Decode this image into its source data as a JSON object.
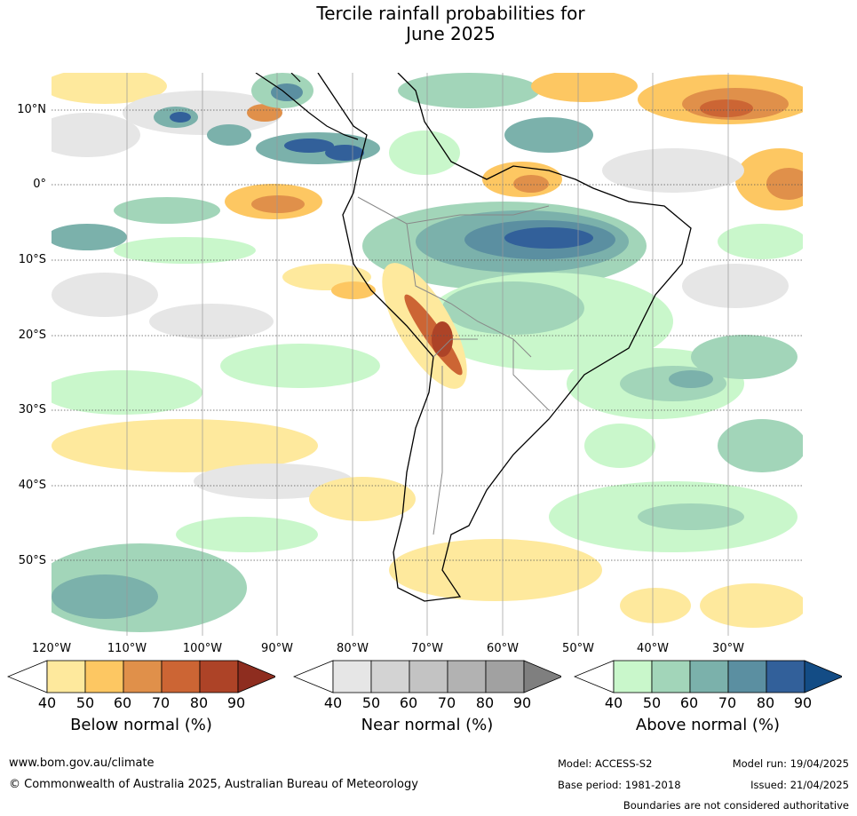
{
  "title": {
    "line1": "Tercile rainfall probabilities for",
    "line2": "June 2025"
  },
  "map": {
    "lat_labels": [
      "10°N",
      "0°",
      "10°S",
      "20°S",
      "30°S",
      "40°S",
      "50°S"
    ],
    "lon_labels": [
      "120°W",
      "110°W",
      "100°W",
      "90°W",
      "80°W",
      "70°W",
      "60°W",
      "50°W",
      "40°W",
      "30°W"
    ]
  },
  "colorbars": {
    "below": {
      "label": "Below normal (%)",
      "ticks": [
        "40",
        "50",
        "60",
        "70",
        "80",
        "90"
      ],
      "colors": [
        "#ffffff",
        "#fee99d",
        "#fdc762",
        "#e0904a",
        "#cc6534",
        "#ad4327",
        "#8e2d1f"
      ]
    },
    "near": {
      "label": "Near normal (%)",
      "ticks": [
        "40",
        "50",
        "60",
        "70",
        "80",
        "90"
      ],
      "colors": [
        "#ffffff",
        "#e6e6e6",
        "#d3d3d3",
        "#c3c3c3",
        "#b2b2b2",
        "#a1a1a1",
        "#7f7f7f"
      ]
    },
    "above": {
      "label": "Above normal (%)",
      "ticks": [
        "40",
        "50",
        "60",
        "70",
        "80",
        "90"
      ],
      "colors": [
        "#ffffff",
        "#c9f7cb",
        "#a2d5b9",
        "#7bb1ab",
        "#5b8fa1",
        "#32609a",
        "#134c85"
      ]
    }
  },
  "footer": {
    "url": "www.bom.gov.au/climate",
    "copyright": "© Commonwealth of Australia 2025, Australian Bureau of Meteorology",
    "model": "Model: ACCESS-S2",
    "model_run": "Model run: 19/04/2025",
    "base_period": "Base period: 1981-2018",
    "issued": "Issued: 21/04/2025",
    "boundaries": "Boundaries are not considered authoritative"
  }
}
